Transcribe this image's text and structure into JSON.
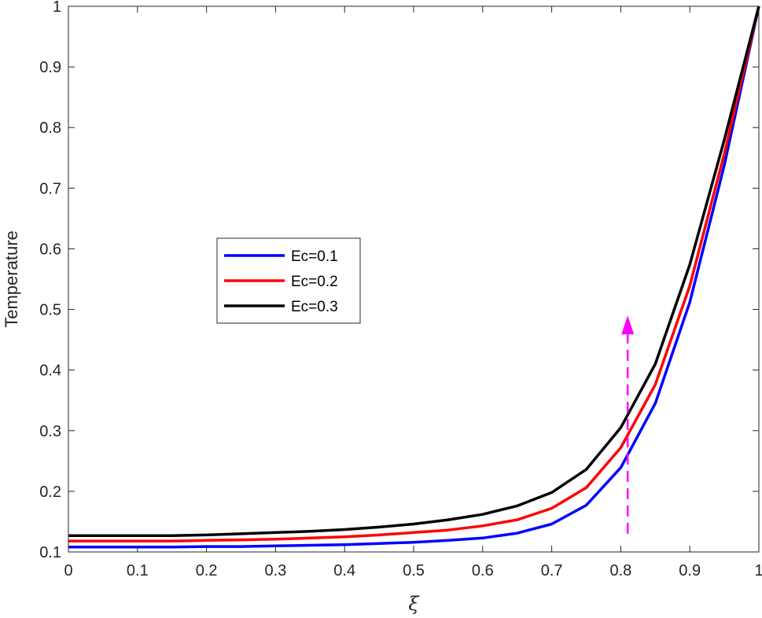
{
  "chart_data": {
    "type": "line",
    "xlabel": "ξ",
    "ylabel": "Temperature",
    "xlim": [
      0,
      1
    ],
    "ylim": [
      0.1,
      1
    ],
    "xticks": [
      "0",
      "0.1",
      "0.2",
      "0.3",
      "0.4",
      "0.5",
      "0.6",
      "0.7",
      "0.8",
      "0.9",
      "1"
    ],
    "yticks": [
      "0.1",
      "0.2",
      "0.3",
      "0.4",
      "0.5",
      "0.6",
      "0.7",
      "0.8",
      "0.9",
      "1"
    ],
    "grid": false,
    "legend_position": "center-left",
    "x": [
      0,
      0.05,
      0.1,
      0.15,
      0.2,
      0.25,
      0.3,
      0.35,
      0.4,
      0.45,
      0.5,
      0.55,
      0.6,
      0.65,
      0.7,
      0.75,
      0.8,
      0.85,
      0.9,
      0.95,
      1.0
    ],
    "series": [
      {
        "name": "Ec=0.1",
        "color": "#0000ff",
        "values": [
          0.108,
          0.108,
          0.108,
          0.108,
          0.109,
          0.109,
          0.11,
          0.111,
          0.112,
          0.114,
          0.116,
          0.119,
          0.123,
          0.131,
          0.146,
          0.177,
          0.239,
          0.345,
          0.512,
          0.738,
          1.0
        ]
      },
      {
        "name": "Ec=0.2",
        "color": "#ff0000",
        "values": [
          0.118,
          0.118,
          0.118,
          0.118,
          0.119,
          0.12,
          0.121,
          0.123,
          0.125,
          0.128,
          0.132,
          0.136,
          0.143,
          0.153,
          0.172,
          0.206,
          0.272,
          0.376,
          0.539,
          0.757,
          1.0
        ]
      },
      {
        "name": "Ec=0.3",
        "color": "#000000",
        "values": [
          0.127,
          0.127,
          0.127,
          0.127,
          0.128,
          0.13,
          0.132,
          0.134,
          0.137,
          0.141,
          0.146,
          0.153,
          0.162,
          0.176,
          0.198,
          0.236,
          0.305,
          0.41,
          0.574,
          0.78,
          1.0
        ]
      }
    ],
    "annotations": [
      {
        "type": "arrow",
        "style": "dashed",
        "color": "#ff00ff",
        "x": 0.81,
        "y_start": 0.13,
        "y_end": 0.49
      }
    ]
  }
}
